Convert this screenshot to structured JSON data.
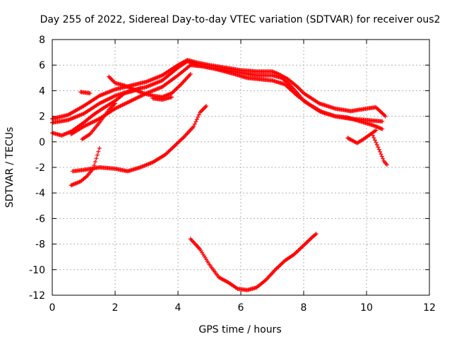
{
  "chart_data": {
    "type": "scatter",
    "title": "Day 255 of 2022, Sidereal Day-to-day VTEC variation (SDTVAR) for receiver ous2",
    "xlabel": "GPS time / hours",
    "ylabel": "SDTVAR / TECUs",
    "xlim": [
      0,
      12
    ],
    "ylim": [
      -12,
      8
    ],
    "xticks": [
      0,
      2,
      4,
      6,
      8,
      10,
      12
    ],
    "yticks": [
      -12,
      -10,
      -8,
      -6,
      -4,
      -2,
      0,
      2,
      4,
      6,
      8
    ],
    "grid": true,
    "marker": "+",
    "color": "#ff0000",
    "series": [
      {
        "name": "main-band-a",
        "points": [
          [
            0,
            1.5
          ],
          [
            0.5,
            1.7
          ],
          [
            1,
            2.2
          ],
          [
            1.5,
            3.0
          ],
          [
            2,
            3.6
          ],
          [
            2.5,
            4.0
          ],
          [
            3,
            4.3
          ],
          [
            3.5,
            4.8
          ],
          [
            4,
            5.8
          ],
          [
            4.3,
            6.3
          ],
          [
            4.6,
            6.0
          ],
          [
            5,
            5.8
          ],
          [
            5.5,
            5.6
          ],
          [
            6,
            5.4
          ],
          [
            6.5,
            5.2
          ],
          [
            7,
            5.2
          ],
          [
            7.3,
            5.0
          ],
          [
            7.5,
            4.6
          ],
          [
            7.8,
            3.8
          ],
          [
            8,
            3.2
          ],
          [
            8.5,
            2.4
          ],
          [
            9,
            2.0
          ],
          [
            9.5,
            1.8
          ],
          [
            10,
            1.7
          ],
          [
            10.5,
            1.6
          ]
        ]
      },
      {
        "name": "main-band-b",
        "points": [
          [
            0,
            1.8
          ],
          [
            0.5,
            2.1
          ],
          [
            1,
            2.8
          ],
          [
            1.5,
            3.6
          ],
          [
            2,
            4.1
          ],
          [
            2.5,
            4.4
          ],
          [
            3,
            4.7
          ],
          [
            3.5,
            5.2
          ],
          [
            4,
            6.0
          ],
          [
            4.3,
            6.4
          ],
          [
            4.6,
            6.2
          ],
          [
            5,
            6.0
          ],
          [
            5.5,
            5.8
          ],
          [
            6,
            5.6
          ],
          [
            6.5,
            5.5
          ],
          [
            7,
            5.5
          ],
          [
            7.2,
            5.3
          ],
          [
            7.5,
            4.9
          ],
          [
            7.8,
            4.3
          ],
          [
            8,
            3.8
          ],
          [
            8.5,
            3.0
          ],
          [
            9,
            2.6
          ],
          [
            9.5,
            2.4
          ],
          [
            10,
            2.6
          ],
          [
            10.3,
            2.7
          ],
          [
            10.6,
            2.0
          ]
        ]
      },
      {
        "name": "main-band-c",
        "points": [
          [
            0.6,
            0.6
          ],
          [
            1,
            1.2
          ],
          [
            1.5,
            1.8
          ],
          [
            2,
            2.6
          ],
          [
            2.5,
            3.2
          ],
          [
            3,
            3.8
          ],
          [
            3.5,
            4.3
          ],
          [
            4,
            5.2
          ],
          [
            4.4,
            6.0
          ],
          [
            4.8,
            5.9
          ],
          [
            5.2,
            5.7
          ],
          [
            5.8,
            5.3
          ],
          [
            6.2,
            5.0
          ],
          [
            6.6,
            4.9
          ],
          [
            7,
            4.8
          ],
          [
            7.4,
            4.5
          ],
          [
            7.8,
            3.6
          ],
          [
            8.2,
            2.9
          ],
          [
            8.6,
            2.3
          ],
          [
            9,
            2.0
          ],
          [
            9.4,
            1.9
          ],
          [
            9.8,
            1.6
          ],
          [
            10.2,
            1.3
          ],
          [
            10.5,
            1.0
          ]
        ]
      },
      {
        "name": "arc-left",
        "points": [
          [
            0,
            0.7
          ],
          [
            0.3,
            0.5
          ],
          [
            0.6,
            0.8
          ],
          [
            1,
            1.5
          ],
          [
            1.3,
            2.1
          ],
          [
            1.6,
            2.6
          ],
          [
            2,
            3.2
          ],
          [
            2.3,
            3.8
          ],
          [
            2.6,
            4.0
          ],
          [
            2.8,
            4.2
          ]
        ]
      },
      {
        "name": "upper-spur",
        "points": [
          [
            1.8,
            5.1
          ],
          [
            2,
            4.6
          ],
          [
            2.3,
            4.4
          ],
          [
            2.6,
            4.1
          ],
          [
            2.9,
            3.8
          ],
          [
            3.2,
            3.6
          ],
          [
            3.5,
            3.5
          ],
          [
            3.8,
            3.8
          ],
          [
            4.1,
            4.5
          ],
          [
            4.4,
            5.3
          ]
        ]
      },
      {
        "name": "lower-arc",
        "points": [
          [
            3.2,
            3.4
          ],
          [
            3.5,
            3.3
          ],
          [
            3.8,
            3.5
          ]
        ]
      },
      {
        "name": "short-rise",
        "points": [
          [
            0.95,
            0.2
          ],
          [
            1.2,
            0.6
          ],
          [
            1.5,
            1.5
          ],
          [
            1.8,
            2.5
          ],
          [
            2.0,
            3.0
          ]
        ]
      },
      {
        "name": "dash",
        "points": [
          [
            0.9,
            3.9
          ],
          [
            1.2,
            3.8
          ]
        ]
      },
      {
        "name": "mid-line",
        "points": [
          [
            0.65,
            -2.3
          ],
          [
            1,
            -2.2
          ],
          [
            1.5,
            -2.0
          ],
          [
            2,
            -2.1
          ],
          [
            2.4,
            -2.3
          ],
          [
            2.8,
            -2.0
          ],
          [
            3.2,
            -1.6
          ],
          [
            3.6,
            -1.0
          ],
          [
            3.9,
            -0.3
          ],
          [
            4.2,
            0.4
          ],
          [
            4.5,
            1.2
          ],
          [
            4.7,
            2.3
          ],
          [
            4.9,
            2.8
          ]
        ]
      },
      {
        "name": "bottom-left",
        "points": [
          [
            0.6,
            -3.4
          ],
          [
            0.9,
            -3.1
          ],
          [
            1.1,
            -2.7
          ],
          [
            1.3,
            -2.1
          ],
          [
            1.5,
            -0.5
          ]
        ]
      },
      {
        "name": "deep-trough",
        "points": [
          [
            4.4,
            -7.6
          ],
          [
            4.7,
            -8.4
          ],
          [
            5.0,
            -9.6
          ],
          [
            5.3,
            -10.6
          ],
          [
            5.6,
            -11.0
          ],
          [
            5.9,
            -11.5
          ],
          [
            6.2,
            -11.6
          ],
          [
            6.5,
            -11.4
          ],
          [
            6.8,
            -10.8
          ],
          [
            7.1,
            -10.0
          ],
          [
            7.4,
            -9.3
          ],
          [
            7.7,
            -8.8
          ],
          [
            8.0,
            -8.1
          ],
          [
            8.3,
            -7.4
          ],
          [
            8.4,
            -7.2
          ]
        ]
      },
      {
        "name": "right-tail",
        "points": [
          [
            10.2,
            0.5
          ],
          [
            10.4,
            -0.6
          ],
          [
            10.55,
            -1.5
          ],
          [
            10.65,
            -1.8
          ]
        ]
      },
      {
        "name": "right-spikes",
        "points": [
          [
            9.4,
            0.3
          ],
          [
            9.7,
            -0.1
          ],
          [
            9.9,
            0.2
          ],
          [
            10.3,
            0.9
          ]
        ]
      }
    ]
  }
}
